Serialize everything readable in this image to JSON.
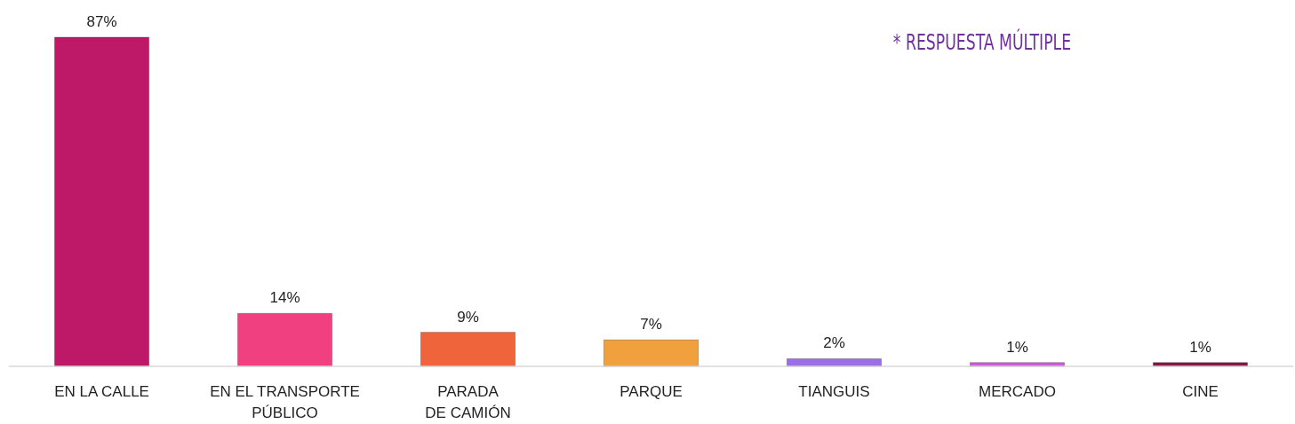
{
  "chart_data": {
    "type": "bar",
    "categories": [
      "EN LA CALLE",
      "EN EL TRANSPORTE PÚBLICO",
      "PARADA DE CAMIÓN",
      "PARQUE",
      "TIANGUIS",
      "MERCADO",
      "CINE"
    ],
    "values": [
      87,
      14,
      9,
      7,
      2,
      1,
      1
    ],
    "value_labels": [
      "87%",
      "14%",
      "9%",
      "7%",
      "2%",
      "1%",
      "1%"
    ],
    "colors": [
      "#be1869",
      "#f0407f",
      "#f0643c",
      "#f0a03c",
      "#9b6ee6",
      "#d25adc",
      "#8c1446"
    ],
    "annotations": [
      "* RESPUESTA MÚLTIPLE"
    ]
  }
}
